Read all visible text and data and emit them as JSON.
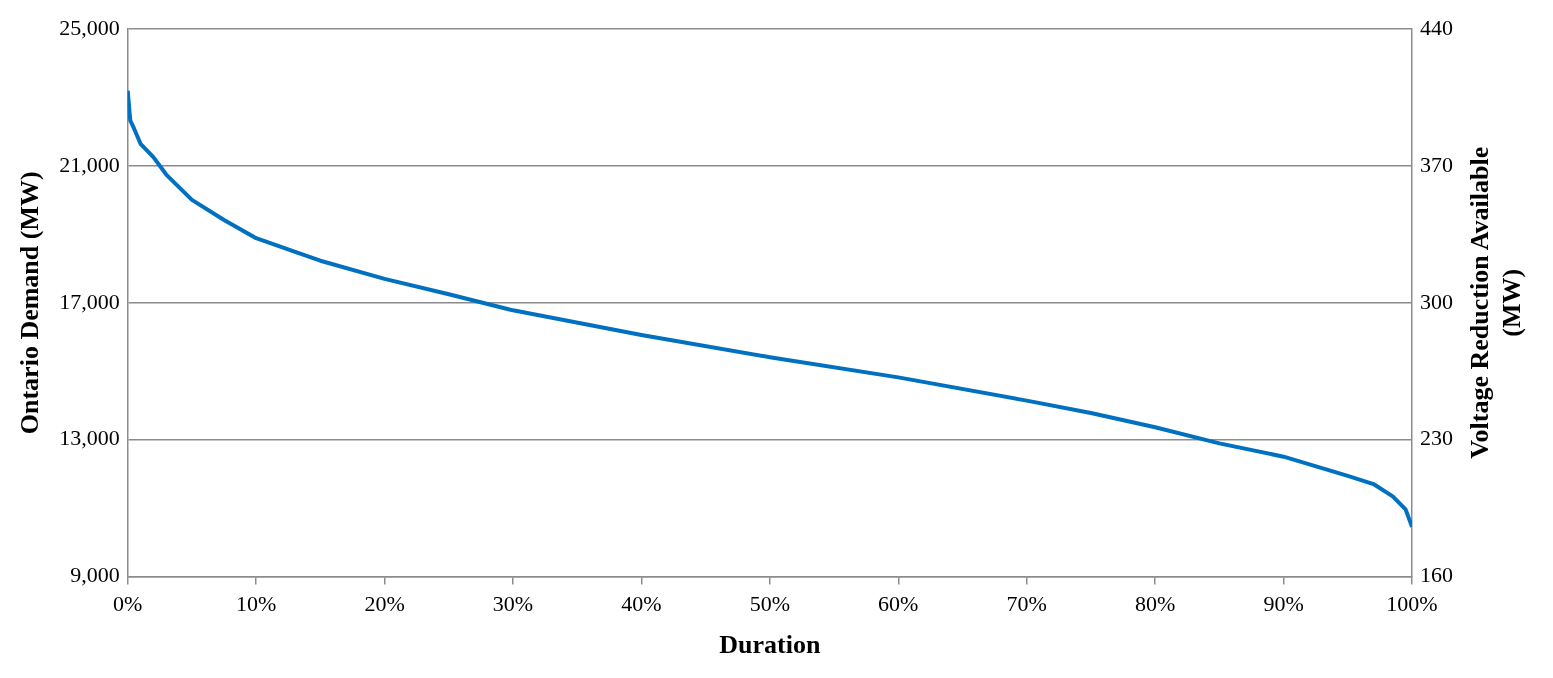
{
  "chart_data": {
    "type": "line",
    "xlabel": "Duration",
    "ylabel": "Ontario Demand (MW)",
    "y2label": "Voltage Reduction Available (MW)",
    "x": [
      0,
      0.2,
      0.5,
      1,
      2,
      3,
      5,
      7.5,
      10,
      15,
      20,
      25,
      30,
      40,
      50,
      60,
      70,
      75,
      80,
      85,
      90,
      95,
      97,
      98.5,
      99.5,
      100
    ],
    "series": [
      {
        "color": "#0070c0",
        "values": [
          23200,
          22330,
          22090,
          21650,
          21260,
          20750,
          20010,
          19420,
          18890,
          18230,
          17700,
          17250,
          16780,
          16060,
          15410,
          14820,
          14140,
          13780,
          13360,
          12890,
          12500,
          11940,
          11700,
          11340,
          10960,
          10450
        ]
      }
    ],
    "xlim": [
      0,
      100
    ],
    "xticks": [
      {
        "value": 0,
        "label": "0%"
      },
      {
        "value": 10,
        "label": "10%"
      },
      {
        "value": 20,
        "label": "20%"
      },
      {
        "value": 30,
        "label": "30%"
      },
      {
        "value": 40,
        "label": "40%"
      },
      {
        "value": 50,
        "label": "50%"
      },
      {
        "value": 60,
        "label": "60%"
      },
      {
        "value": 70,
        "label": "70%"
      },
      {
        "value": 80,
        "label": "80%"
      },
      {
        "value": 90,
        "label": "90%"
      },
      {
        "value": 100,
        "label": "100%"
      }
    ],
    "ylim": [
      9000,
      25000
    ],
    "yticks": [
      {
        "value": 9000,
        "label": "9,000"
      },
      {
        "value": 13000,
        "label": "13,000"
      },
      {
        "value": 17000,
        "label": "17,000"
      },
      {
        "value": 21000,
        "label": "21,000"
      },
      {
        "value": 25000,
        "label": "25,000"
      }
    ],
    "y2lim": [
      160,
      440
    ],
    "y2ticks": [
      160,
      230,
      300,
      370,
      440
    ],
    "grid": "y",
    "legend": false,
    "marker": "none",
    "line_style": "solid"
  }
}
